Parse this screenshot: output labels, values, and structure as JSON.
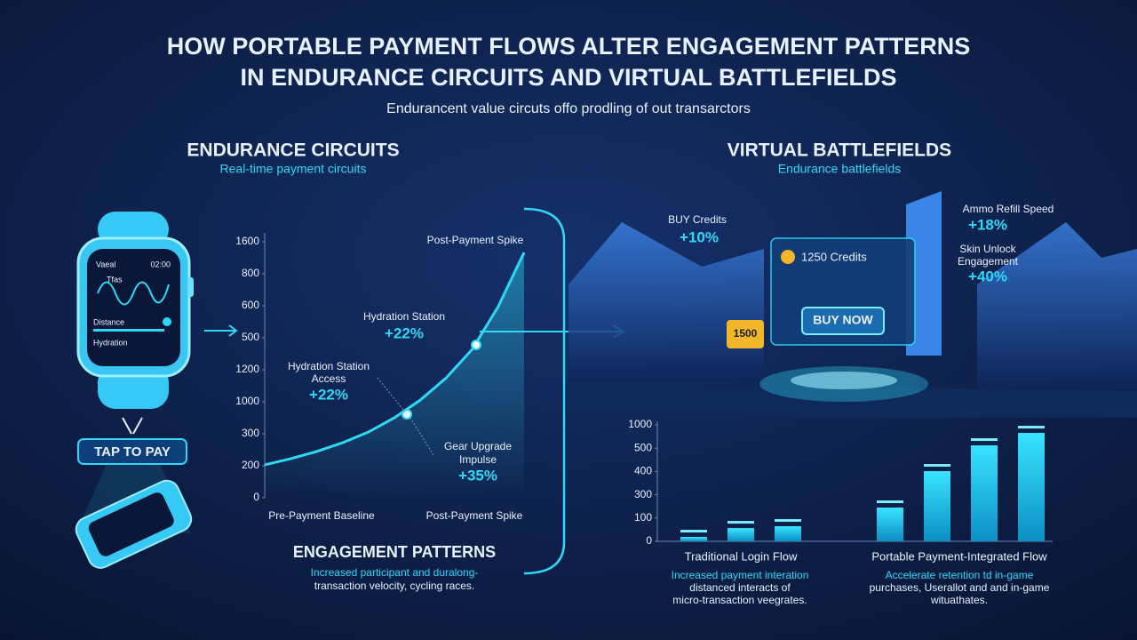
{
  "header": {
    "title": [
      "HOW PORTABLE PAYMENT FLOWS ALTER ENGAGEMENT PATTERNS",
      "IN ENDURANCE CIRCUITS AND VIRTUAL BATTLEFIELDS"
    ],
    "subtitle": "Endurancent value circuts offo prodling of out transarctors"
  },
  "left": {
    "heading": "ENDURANCE CIRCUITS",
    "subheading": "Real-time payment circuits",
    "watch": {
      "app": "Vaeal",
      "time": "02:00",
      "metric": "Tfas",
      "distance": "Distance",
      "hydration": "Hydration"
    },
    "tap_button": "TAP TO PAY",
    "section_title": "ENGAGEMENT PATTERNS",
    "caption": [
      "Increased participant and duralong-",
      "transaction velocity, cycling races."
    ]
  },
  "right": {
    "heading": "VIRTUAL BATTLEFIELDS",
    "subheading": "Endurance battlefields",
    "callouts": [
      {
        "label": [
          "BUY Credits"
        ],
        "value": "+10%"
      },
      {
        "label": [
          "Ammo Refill Speed"
        ],
        "value": "+18%"
      },
      {
        "label": [
          "Skin Unlock",
          "Engagement"
        ],
        "value": "+40%"
      }
    ],
    "screen": {
      "balance": "1250 Credits",
      "button": "BUY NOW"
    },
    "coin_tag": "1500",
    "captions": [
      [
        "Increased payment interation",
        "distanced interacts of",
        "micro-transaction veegrates."
      ],
      [
        "Accelerate retention td in-game",
        "purchases, Userallot and and in-game",
        "wituathates."
      ]
    ]
  },
  "chart_data": [
    {
      "type": "line",
      "color": "#2fd8f7",
      "categories": [
        "Pre-Payment Baseline",
        null,
        null,
        null,
        null,
        null,
        null,
        null,
        null,
        null,
        "Post-Payment Spike"
      ],
      "values": [
        206,
        244,
        289,
        344,
        411,
        500,
        611,
        750,
        928,
        1194,
        1533
      ],
      "ylim": [
        0,
        1600
      ],
      "yticks": [
        0,
        200,
        {
          "value": 400,
          "label": "300"
        },
        {
          "value": 600,
          "label": "1000"
        },
        {
          "value": 800,
          "label": "1200"
        },
        {
          "value": 1000,
          "label": "500"
        },
        {
          "value": 1200,
          "label": "600"
        },
        {
          "value": 1400,
          "label": "800"
        },
        {
          "value": 1600,
          "label": "1600"
        }
      ],
      "annotations": [
        {
          "text": [
            "Post-Payment Spike"
          ]
        },
        {
          "text": [
            "Hydration Station"
          ],
          "value": "+22%"
        },
        {
          "text": [
            "Hydration Station",
            "Access"
          ],
          "value": "+22%"
        },
        {
          "text": [
            "Gear Upgrade",
            "Impulse"
          ],
          "value": "+35%"
        }
      ]
    },
    {
      "type": "bar",
      "color": "#1fc6ee",
      "groups": [
        {
          "name": "Traditional Login Flow",
          "values": [
            38,
            114,
            130
          ]
        },
        {
          "name": "Portable Payment-Integrated Flow",
          "values": [
            290,
            603,
            824,
            931
          ]
        }
      ],
      "ylim": [
        0,
        1000
      ],
      "yticks": [
        0,
        {
          "value": 200,
          "label": "100"
        },
        {
          "value": 400,
          "label": "300"
        },
        {
          "value": 600,
          "label": "400"
        },
        {
          "value": 800,
          "label": "500"
        },
        1000
      ]
    }
  ]
}
